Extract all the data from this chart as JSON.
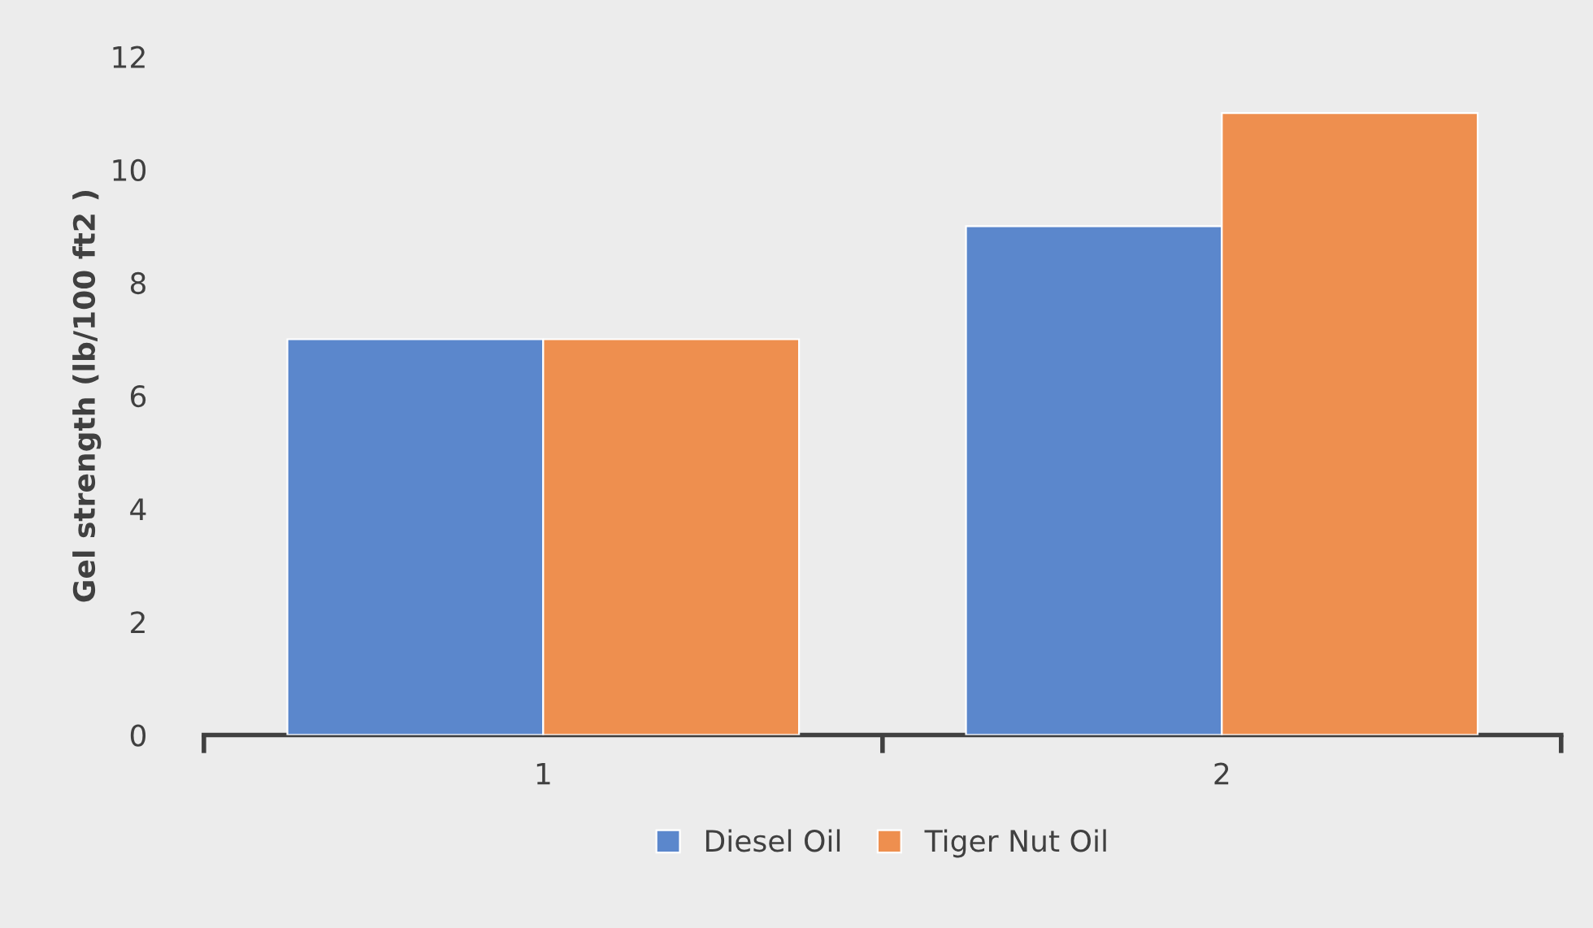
{
  "chart_data": {
    "type": "bar",
    "ylabel": "Gel strength (lb/100 ft2 )",
    "categories": [
      "1",
      "2"
    ],
    "series": [
      {
        "name": "Diesel Oil",
        "color": "#5b87cc",
        "values": [
          7,
          9
        ]
      },
      {
        "name": "Tiger Nut Oil",
        "color": "#ee8f4f",
        "values": [
          7,
          11
        ]
      }
    ],
    "ylim": [
      0,
      12
    ],
    "yticks": [
      0,
      2,
      4,
      6,
      8,
      10,
      12
    ],
    "grid": false,
    "legend": "bottom"
  }
}
